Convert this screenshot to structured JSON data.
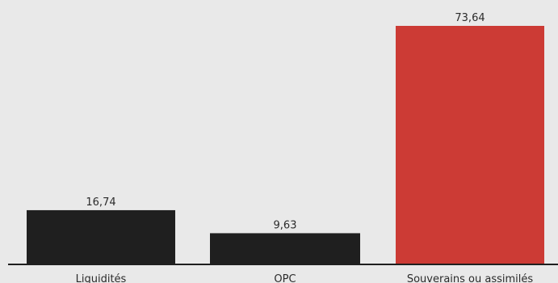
{
  "chart_data": {
    "type": "bar",
    "categories": [
      "Liquidités",
      "OPC",
      "Souverains ou assimilés"
    ],
    "values": [
      16.74,
      9.63,
      73.64
    ],
    "value_labels": [
      "16,74",
      "9,63",
      "73,64"
    ],
    "title": "",
    "xlabel": "",
    "ylabel": "",
    "ylim": [
      0,
      78
    ],
    "grid": false,
    "legend": "none",
    "colors": [
      "#1f1f1f",
      "#1f1f1f",
      "#cc3b35"
    ],
    "axis_color": "#1f1f1f",
    "background": "#e9e9e9"
  }
}
